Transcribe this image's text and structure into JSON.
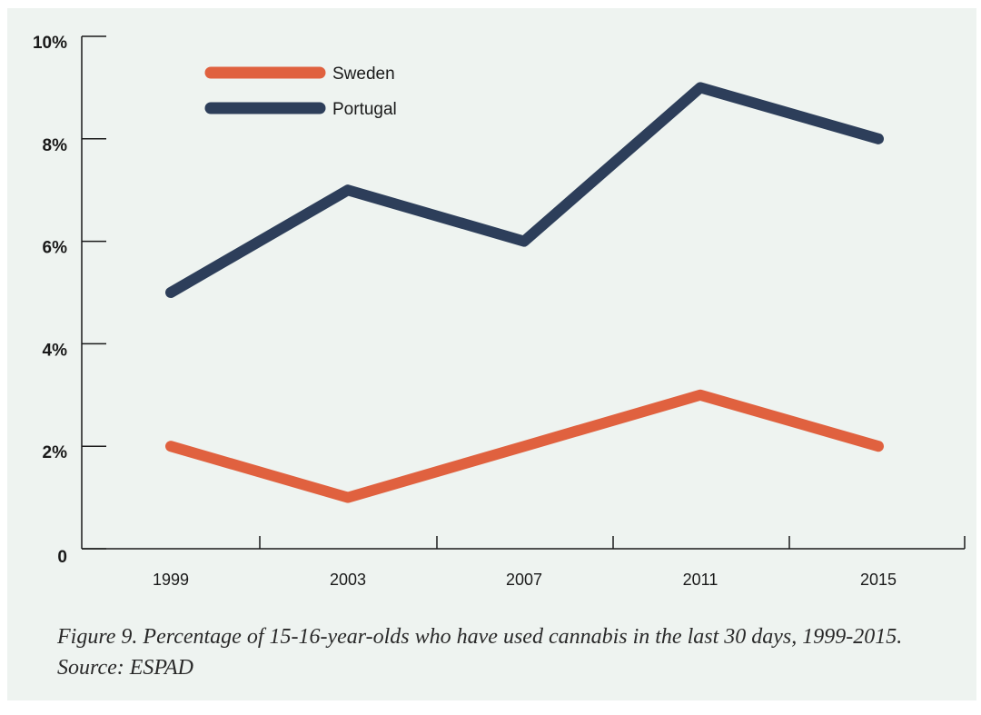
{
  "caption": "Figure 9. Percentage of 15-16-year-olds who have used cannabis in the last 30 days, 1999-2015. Source: ESPAD",
  "chart_data": {
    "type": "line",
    "x": [
      "1999",
      "2003",
      "2007",
      "2011",
      "2015"
    ],
    "y_ticks": [
      "0",
      "2%",
      "4%",
      "6%",
      "8%",
      "10%"
    ],
    "ylim": [
      0,
      10
    ],
    "grid": false,
    "legend_position": "top-left",
    "series": [
      {
        "name": "Sweden",
        "values": [
          2,
          1,
          2,
          3,
          2
        ],
        "color": "#e0613f"
      },
      {
        "name": "Portugal",
        "values": [
          5,
          7,
          6,
          9,
          8
        ],
        "color": "#2d3e5a"
      }
    ]
  }
}
